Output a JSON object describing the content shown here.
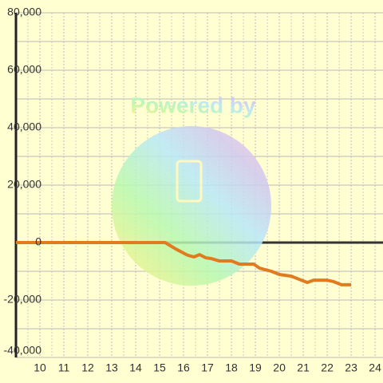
{
  "chart_data": {
    "type": "line",
    "watermark": "Powered by",
    "x": [
      9,
      15.23,
      15.67,
      16.17,
      16.43,
      16.67,
      16.93,
      17.17,
      17.5,
      18,
      18.33,
      18.93,
      19.17,
      19.67,
      20,
      20.5,
      20.83,
      21.17,
      21.43,
      22,
      22.27,
      22.6,
      23
    ],
    "series": [
      {
        "color": "#e07b20",
        "values": [
          0,
          0,
          -2200,
          -4400,
          -5000,
          -4200,
          -5300,
          -5600,
          -6400,
          -6400,
          -7500,
          -7500,
          -8900,
          -10000,
          -11100,
          -11700,
          -12800,
          -13900,
          -13100,
          -13100,
          -13600,
          -14700,
          -14700
        ]
      }
    ],
    "xlim": [
      9,
      24.33
    ],
    "ylim": [
      -40000,
      80000
    ],
    "xticks": [
      10,
      11,
      12,
      13,
      14,
      15,
      16,
      17,
      18,
      19,
      20,
      21,
      22,
      23,
      24
    ],
    "yticks": [
      {
        "value": -40000,
        "label": "-40,000"
      },
      {
        "value": -20000,
        "label": "-20,000"
      },
      0,
      {
        "value": 20000,
        "label": "20,000"
      },
      {
        "value": 40000,
        "label": "40,000"
      },
      {
        "value": 60000,
        "label": "60,000"
      },
      {
        "value": 80000,
        "label": "80,000"
      }
    ],
    "grid": true
  }
}
